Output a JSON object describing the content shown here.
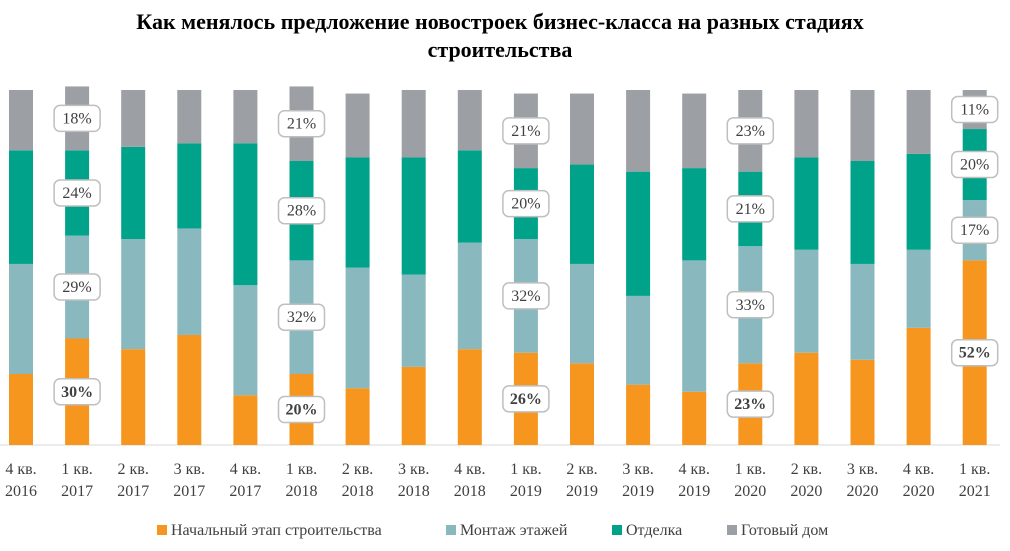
{
  "chart_data": {
    "type": "bar",
    "stacked": true,
    "title_lines": [
      "Как менялось предложение новостроек бизнес-класса на разных стадиях",
      "строительства"
    ],
    "categories": [
      [
        "4 кв.",
        "2016"
      ],
      [
        "1 кв.",
        "2017"
      ],
      [
        "2 кв.",
        "2017"
      ],
      [
        "3 кв.",
        "2017"
      ],
      [
        "4 кв.",
        "2017"
      ],
      [
        "1 кв.",
        "2018"
      ],
      [
        "2 кв.",
        "2018"
      ],
      [
        "3 кв.",
        "2018"
      ],
      [
        "4 кв.",
        "2018"
      ],
      [
        "1 кв.",
        "2019"
      ],
      [
        "2 кв.",
        "2019"
      ],
      [
        "3 кв.",
        "2019"
      ],
      [
        "4 кв.",
        "2019"
      ],
      [
        "1 кв.",
        "2020"
      ],
      [
        "2 кв.",
        "2020"
      ],
      [
        "3 кв.",
        "2020"
      ],
      [
        "4 кв.",
        "2020"
      ],
      [
        "1 кв.",
        "2021"
      ]
    ],
    "ylim": [
      0,
      100
    ],
    "series": [
      {
        "name": "Начальный этап строительства",
        "color": "#f7961e",
        "values": [
          20,
          30,
          27,
          31,
          14,
          20,
          16,
          22,
          27,
          26,
          23,
          17,
          15,
          23,
          26,
          24,
          33,
          52
        ]
      },
      {
        "name": "Монтаж этажей",
        "color": "#8ab8bf",
        "values": [
          31,
          29,
          31,
          30,
          31,
          32,
          34,
          26,
          30,
          32,
          28,
          25,
          37,
          33,
          29,
          27,
          22,
          17
        ]
      },
      {
        "name": "Отделка",
        "color": "#00a38a",
        "values": [
          32,
          24,
          26,
          24,
          40,
          28,
          31,
          33,
          26,
          20,
          28,
          35,
          26,
          21,
          26,
          29,
          27,
          20
        ]
      },
      {
        "name": "Готовый дом",
        "color": "#9c9fa3",
        "values": [
          17,
          18,
          16,
          15,
          15,
          21,
          18,
          19,
          17,
          21,
          20,
          23,
          21,
          23,
          19,
          20,
          18,
          11
        ]
      }
    ],
    "labeled_bars": [
      1,
      5,
      9,
      13,
      17
    ],
    "legend": [
      "Начальный этап строительства",
      "Монтаж этажей",
      "Отделка",
      "Готовый дом"
    ],
    "legend_position": "bottom"
  }
}
